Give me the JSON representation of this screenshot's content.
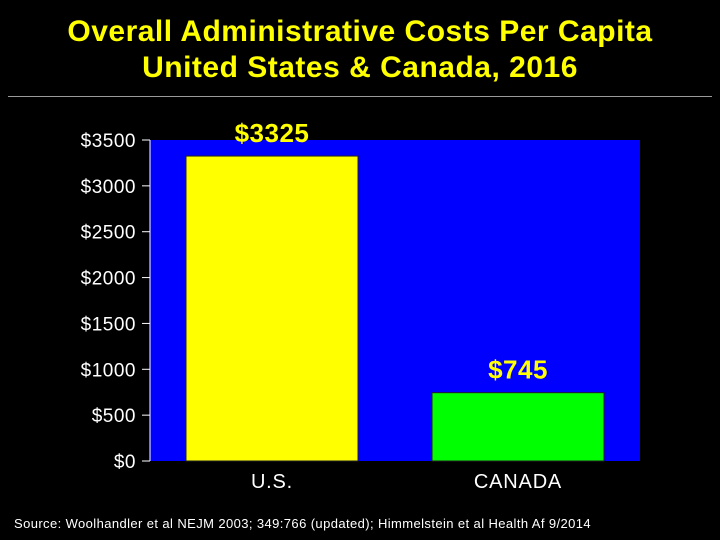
{
  "title": {
    "line1": "Overall Administrative Costs Per Capita",
    "line2": "United States & Canada, 2016"
  },
  "source": "Source: Woolhandler et al NEJM 2003; 349:766 (updated); Himmelstein et al Health Af 9/2014",
  "colors": {
    "background": "#000000",
    "plot_area": "#0000ff",
    "title": "#ffff00",
    "us_bar": "#ffff00",
    "canada_bar": "#00ff00",
    "data_label": "#ffff00",
    "tick_label": "#ffffff"
  },
  "chart_data": {
    "type": "bar",
    "title": "Overall Administrative Costs Per Capita, United States & Canada, 2016",
    "categories": [
      "U.S.",
      "CANADA"
    ],
    "values": [
      3325,
      745
    ],
    "data_labels": [
      "$3325",
      "$745"
    ],
    "ylim": [
      0,
      3500
    ],
    "yticks": [
      0,
      500,
      1000,
      1500,
      2000,
      2500,
      3000,
      3500
    ],
    "ytick_labels": [
      "$0",
      "$500",
      "$1000",
      "$1500",
      "$2000",
      "$2500",
      "$3000",
      "$3500"
    ],
    "xlabel": "",
    "ylabel": "",
    "grid": false
  }
}
